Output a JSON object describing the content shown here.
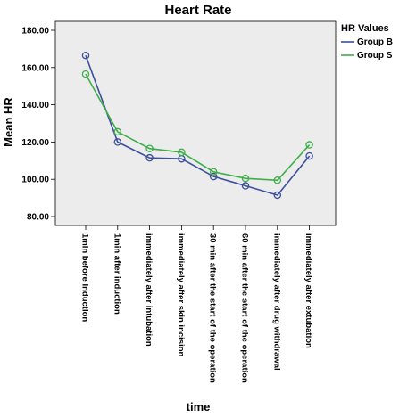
{
  "chart_data": {
    "type": "line",
    "title": "Heart Rate",
    "xlabel": "time",
    "ylabel": "Mean HR",
    "ylim": [
      80,
      180
    ],
    "yticks": [
      "80.00",
      "100.00",
      "120.00",
      "140.00",
      "160.00",
      "180.00"
    ],
    "grid": false,
    "legend_position": "right",
    "legend_title": "HR Values",
    "categories": [
      "1min before induction",
      "1min after induction",
      "immediately after intubation",
      "immediately after skin incision",
      "30 min after the start of the operation",
      "60 min after the start of the operation",
      "immediately after drug withdrawal",
      "immediately after extubation"
    ],
    "series": [
      {
        "name": "Group B",
        "color": "#3b4f9a",
        "values": [
          166.5,
          120,
          111.5,
          111,
          101.5,
          96.5,
          91.5,
          112.5
        ]
      },
      {
        "name": "Group S",
        "color": "#3fae49",
        "values": [
          156.5,
          125.5,
          116.5,
          114.5,
          104,
          100.5,
          99.5,
          118.5
        ]
      }
    ]
  }
}
